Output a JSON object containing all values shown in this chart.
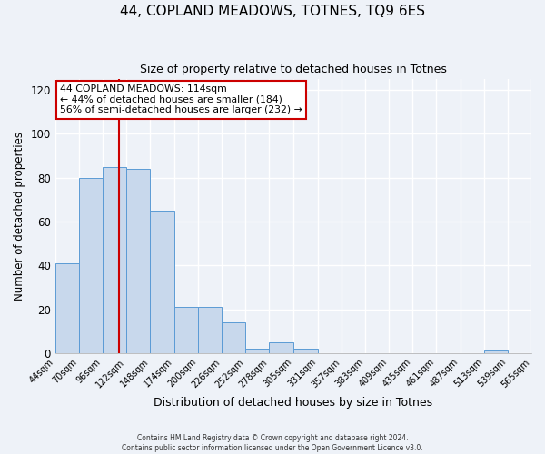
{
  "title": "44, COPLAND MEADOWS, TOTNES, TQ9 6ES",
  "subtitle": "Size of property relative to detached houses in Totnes",
  "xlabel": "Distribution of detached houses by size in Totnes",
  "ylabel": "Number of detached properties",
  "bin_edges": [
    44,
    70,
    96,
    122,
    148,
    174,
    200,
    226,
    252,
    278,
    305,
    331,
    357,
    383,
    409,
    435,
    461,
    487,
    513,
    539,
    565
  ],
  "bar_heights": [
    41,
    80,
    85,
    84,
    65,
    21,
    21,
    14,
    2,
    5,
    2,
    0,
    0,
    0,
    0,
    0,
    0,
    0,
    1,
    0
  ],
  "bar_color": "#c8d8ec",
  "bar_edge_color": "#5b9bd5",
  "property_size": 114,
  "vline_color": "#cc0000",
  "annotation_title": "44 COPLAND MEADOWS: 114sqm",
  "annotation_line1": "← 44% of detached houses are smaller (184)",
  "annotation_line2": "56% of semi-detached houses are larger (232) →",
  "annotation_box_color": "#ffffff",
  "annotation_box_edge": "#cc0000",
  "ylim": [
    0,
    125
  ],
  "yticks": [
    0,
    20,
    40,
    60,
    80,
    100,
    120
  ],
  "background_color": "#eef2f8",
  "grid_color": "#ffffff",
  "footer_line1": "Contains HM Land Registry data © Crown copyright and database right 2024.",
  "footer_line2": "Contains public sector information licensed under the Open Government Licence v3.0."
}
